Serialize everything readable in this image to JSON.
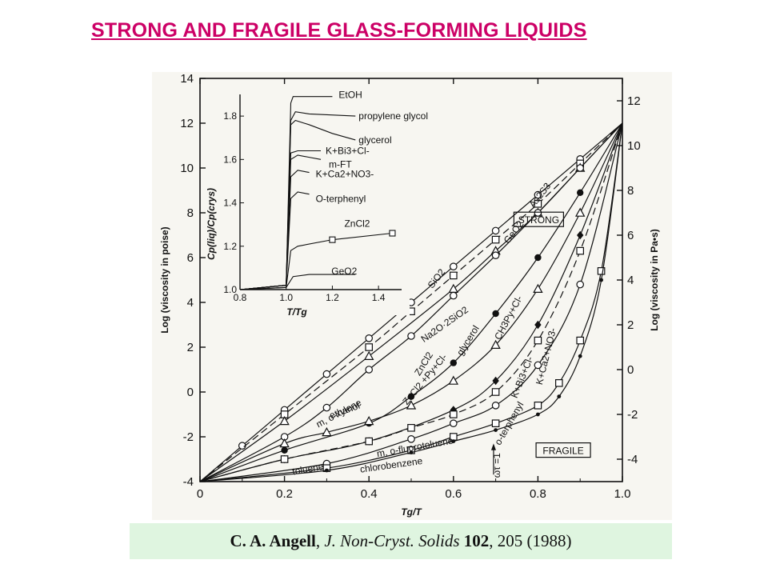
{
  "slide": {
    "title": "STRONG AND FRAGILE GLASS-FORMING LIQUIDS"
  },
  "citation": {
    "author": "C. A. Angell",
    "journal": "J. Non-Cryst. Solids",
    "volume": "102",
    "rest": ", 205 (1988)"
  },
  "colors": {
    "title": "#cc0066",
    "citation_bg": "#dff5e0",
    "figure_bg": "#f7f6f1",
    "ink": "#111111"
  },
  "chart_data": [
    {
      "type": "line",
      "xlabel": "Tg/T",
      "ylabel": "Log (viscosity in poise)",
      "y2label": "Log (viscosity in Pa•s)",
      "xlim": [
        0,
        1.0
      ],
      "ylim": [
        -4,
        14
      ],
      "y2lim": [
        -5,
        13
      ],
      "xticks": [
        0,
        0.2,
        0.4,
        0.6,
        0.8,
        1.0
      ],
      "xtick_labels": [
        "0",
        "0.2",
        "0.4",
        "0.6",
        "0.8",
        "1.0"
      ],
      "yticks": [
        -4,
        -2,
        0,
        2,
        4,
        6,
        8,
        10,
        12,
        14
      ],
      "ytick_labels": [
        "-4",
        "-2",
        "0",
        "2",
        "4",
        "6",
        "8",
        "10",
        "12",
        "14"
      ],
      "y2ticks": [
        -4,
        -2,
        0,
        2,
        4,
        6,
        8,
        10,
        12
      ],
      "y2tick_labels": [
        "-4",
        "-2",
        "0",
        "2",
        "4",
        "6",
        "8",
        "10",
        "12"
      ],
      "annotations": {
        "strong": "STRONG",
        "fragile": "FRAGILE",
        "omega_tau": "ωτ =1"
      },
      "series": [
        {
          "name": "SiO2",
          "marker": "circle-open",
          "x": [
            0,
            0.1,
            0.2,
            0.3,
            0.4,
            0.5,
            0.6,
            0.7,
            0.8,
            0.9,
            1.0
          ],
          "y": [
            -4,
            -2.4,
            -0.8,
            0.8,
            2.4,
            4.0,
            5.6,
            7.2,
            8.8,
            10.4,
            12
          ]
        },
        {
          "name": "GeO2",
          "marker": "square-open",
          "x": [
            0,
            0.2,
            0.4,
            0.5,
            0.6,
            0.7,
            0.8,
            0.9,
            1.0
          ],
          "y": [
            -4,
            -1.0,
            2.0,
            3.6,
            5.2,
            6.8,
            8.4,
            10.2,
            12
          ]
        },
        {
          "name": "As2S3",
          "marker": "triangle-open",
          "x": [
            0,
            0.2,
            0.4,
            0.6,
            0.7,
            0.8,
            0.9,
            1.0
          ],
          "y": [
            -4,
            -1.3,
            1.6,
            4.6,
            6.3,
            8.0,
            10.0,
            12
          ]
        },
        {
          "name": "Na2O·2SiO2",
          "marker": "circle-open",
          "x": [
            0,
            0.2,
            0.3,
            0.4,
            0.5,
            0.6,
            0.7,
            0.8,
            0.9,
            1.0
          ],
          "y": [
            -4,
            -2.0,
            -0.7,
            1.0,
            2.5,
            4.3,
            6.1,
            8.0,
            10.0,
            12
          ]
        },
        {
          "name": "ZnCl2",
          "marker": "circle-filled",
          "x": [
            0,
            0.2,
            0.4,
            0.5,
            0.6,
            0.7,
            0.8,
            0.9,
            1.0
          ],
          "y": [
            -4,
            -2.6,
            -1.4,
            -0.2,
            1.3,
            3.5,
            6.0,
            8.9,
            12
          ]
        },
        {
          "name": "m, o-xylene",
          "marker": "triangle-open",
          "x": [
            0,
            0.2,
            0.3,
            0.4,
            0.5,
            0.6,
            0.7,
            0.8,
            0.9,
            1.0
          ],
          "y": [
            -4,
            -2.3,
            -1.8,
            -1.3,
            -0.6,
            0.5,
            2.1,
            4.6,
            8.0,
            12
          ]
        },
        {
          "name": "ZnCl2 + Py+Cl-",
          "marker": "diamond-filled",
          "x": [
            0,
            0.2,
            0.4,
            0.6,
            0.7,
            0.8,
            0.9,
            1.0
          ],
          "y": [
            -4,
            -3.0,
            -2.2,
            -0.8,
            0.5,
            3.0,
            7.0,
            12
          ]
        },
        {
          "name": "glycerol",
          "marker": "square-open",
          "x": [
            0,
            0.2,
            0.4,
            0.5,
            0.6,
            0.7,
            0.8,
            0.9,
            1.0
          ],
          "y": [
            -4,
            -3.0,
            -2.2,
            -1.6,
            -1.0,
            0.0,
            2.3,
            6.3,
            12
          ]
        },
        {
          "name": "K+Bi3+Cl-",
          "marker": "circle-open",
          "x": [
            0,
            0.3,
            0.5,
            0.6,
            0.7,
            0.8,
            0.9,
            1.0
          ],
          "y": [
            -4,
            -3.2,
            -2.1,
            -1.4,
            -0.6,
            1.2,
            4.8,
            12
          ]
        },
        {
          "name": "o-terphenyl",
          "marker": "square-open",
          "x": [
            0,
            0.3,
            0.5,
            0.6,
            0.7,
            0.8,
            0.85,
            0.9,
            0.95,
            1.0
          ],
          "y": [
            -4,
            -3.4,
            -2.6,
            -2.0,
            -1.4,
            -0.6,
            0.4,
            2.3,
            5.4,
            12
          ]
        },
        {
          "name": "K+Ca2+NO3-",
          "marker": "dot-filled",
          "x": [
            0,
            0.3,
            0.5,
            0.6,
            0.7,
            0.8,
            0.85,
            0.9,
            0.95,
            1.0
          ],
          "y": [
            -4,
            -3.5,
            -2.7,
            -2.2,
            -1.7,
            -1.0,
            -0.2,
            1.6,
            5.0,
            12
          ]
        }
      ],
      "labels": [
        "SiO2",
        "GeO2",
        "As2S3",
        "Na2O·2SiO2",
        "ZnCl2",
        "m, o-xylene",
        "ethanol",
        "toluene",
        "m, o-fluorotoluene",
        "chlorobenzene",
        "ZnCl2 +Py+Cl-",
        "glycerol",
        "CH3Py+Cl-",
        "K+Bi3+Cl-",
        "K+Ca2+NO3-",
        "o-terphenyl"
      ]
    },
    {
      "type": "line",
      "xlabel": "T/Tg",
      "ylabel": "Cp(liq)/Cp(crys)",
      "xlim": [
        0.8,
        1.5
      ],
      "ylim": [
        1.0,
        1.9
      ],
      "xticks": [
        0.8,
        1.0,
        1.2,
        1.4
      ],
      "xtick_labels": [
        "0.8",
        "1.0",
        "1.2",
        "1.4"
      ],
      "yticks": [
        1.0,
        1.2,
        1.4,
        1.6,
        1.8
      ],
      "ytick_labels": [
        "1.0",
        "1.2",
        "1.4",
        "1.6",
        "1.8"
      ],
      "series": [
        {
          "name": "EtOH",
          "x": [
            0.8,
            1.0,
            1.02,
            1.03,
            1.08,
            1.2
          ],
          "y": [
            1.0,
            1.02,
            1.86,
            1.89,
            1.89,
            1.89
          ]
        },
        {
          "name": "propylene glycol",
          "x": [
            0.8,
            1.0,
            1.02,
            1.04,
            1.1,
            1.3
          ],
          "y": [
            1.0,
            1.02,
            1.78,
            1.82,
            1.81,
            1.8
          ]
        },
        {
          "name": "glycerol",
          "x": [
            0.8,
            1.0,
            1.02,
            1.04,
            1.1,
            1.2,
            1.3
          ],
          "y": [
            1.0,
            1.02,
            1.76,
            1.78,
            1.76,
            1.72,
            1.69
          ]
        },
        {
          "name": "K+Bi3+Cl-",
          "x": [
            0.8,
            1.0,
            1.02,
            1.05,
            1.1,
            1.15
          ],
          "y": [
            1.0,
            1.02,
            1.63,
            1.64,
            1.64,
            1.64
          ]
        },
        {
          "name": "m-FT",
          "x": [
            0.8,
            1.0,
            1.02,
            1.05,
            1.1,
            1.15
          ],
          "y": [
            1.0,
            1.02,
            1.6,
            1.62,
            1.61,
            1.6
          ]
        },
        {
          "name": "K+Ca2+NO3-",
          "x": [
            0.8,
            1.0,
            1.02,
            1.05,
            1.1
          ],
          "y": [
            1.0,
            1.02,
            1.52,
            1.55,
            1.54
          ]
        },
        {
          "name": "O-terphenyl",
          "x": [
            0.8,
            1.0,
            1.02,
            1.05,
            1.1
          ],
          "y": [
            1.0,
            1.02,
            1.42,
            1.45,
            1.44
          ]
        },
        {
          "name": "ZnCl2",
          "marker": "square-open",
          "x": [
            0.8,
            1.0,
            1.02,
            1.05,
            1.2,
            1.46
          ],
          "y": [
            1.0,
            1.01,
            1.18,
            1.2,
            1.23,
            1.26
          ]
        },
        {
          "name": "GeO2",
          "x": [
            0.8,
            1.0,
            1.03,
            1.1,
            1.3
          ],
          "y": [
            1.0,
            1.01,
            1.06,
            1.07,
            1.07
          ]
        }
      ]
    }
  ]
}
